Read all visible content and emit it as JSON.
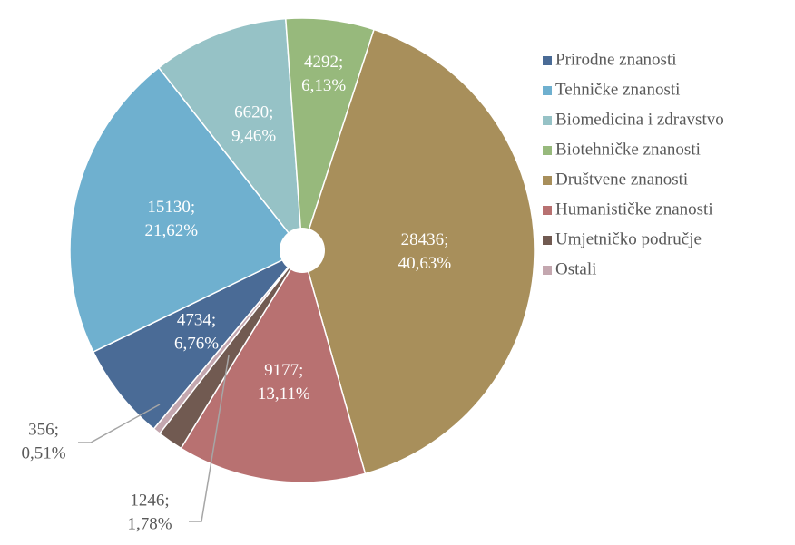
{
  "chart_data": {
    "type": "pie",
    "categories": [
      "Prirodne znanosti",
      "Tehničke znanosti",
      "Biomedicina i zdravstvo",
      "Biotehničke znanosti",
      "Društvene znanosti",
      "Humanističke znanosti",
      "Umjetničko područje",
      "Ostali"
    ],
    "values": [
      4734,
      15130,
      6620,
      4292,
      28436,
      9177,
      1246,
      356
    ],
    "value_labels": [
      "4734;",
      "15130;",
      "6620;",
      "4292;",
      "28436;",
      "9177;",
      "1246;",
      "356;"
    ],
    "percentages": [
      6.76,
      21.62,
      9.46,
      6.13,
      40.63,
      13.11,
      1.78,
      0.51
    ],
    "percentage_labels": [
      "6,76%",
      "21,62%",
      "9,46%",
      "6,13%",
      "40,63%",
      "13,11%",
      "1,78%",
      "0,51%"
    ],
    "colors": [
      "#4a6b96",
      "#6fb0cf",
      "#96c2c6",
      "#97b97c",
      "#a88f5b",
      "#b87171",
      "#715a51",
      "#c4a7af"
    ],
    "legend": "right"
  }
}
